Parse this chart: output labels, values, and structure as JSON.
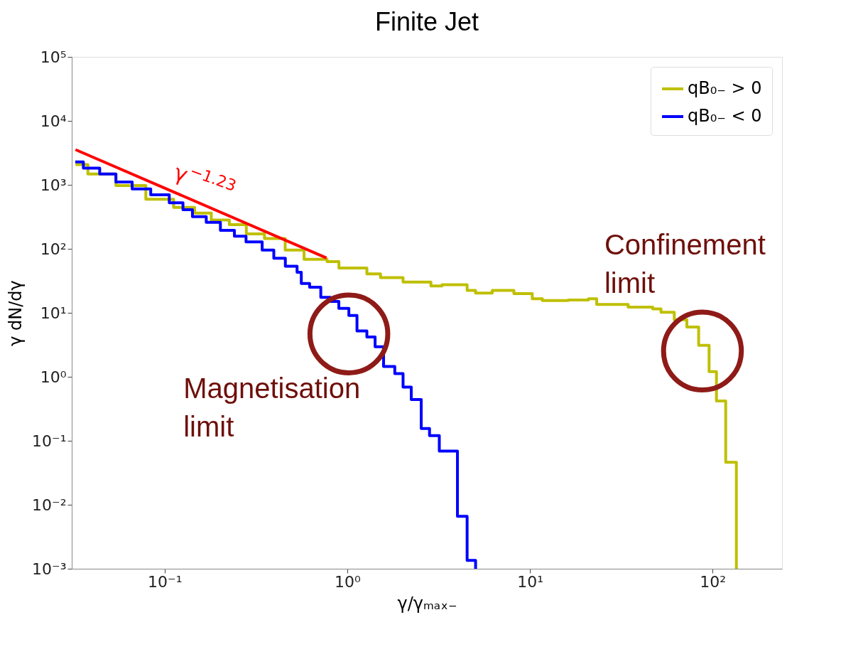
{
  "chart_data": {
    "type": "step",
    "title": "Finite Jet",
    "xlabel": "γ/γₘₐₓ₋",
    "ylabel": "γ dN/dγ",
    "log": "xy",
    "xlim": [
      0.031,
      240
    ],
    "ylim": [
      0.001,
      100000
    ],
    "xticks": [
      {
        "value": 0.1,
        "label": "10⁻¹"
      },
      {
        "value": 1,
        "label": "10⁰"
      },
      {
        "value": 10,
        "label": "10¹"
      },
      {
        "value": 100,
        "label": "10²"
      }
    ],
    "yticks": [
      {
        "value": 0.001,
        "label": "10⁻³"
      },
      {
        "value": 0.01,
        "label": "10⁻²"
      },
      {
        "value": 0.1,
        "label": "10⁻¹"
      },
      {
        "value": 1,
        "label": "10⁰"
      },
      {
        "value": 10,
        "label": "10¹"
      },
      {
        "value": 100,
        "label": "10²"
      },
      {
        "value": 1000,
        "label": "10³"
      },
      {
        "value": 10000,
        "label": "10⁴"
      },
      {
        "value": 100000,
        "label": "10⁵"
      }
    ],
    "grid": false,
    "legend": "top right",
    "series": [
      {
        "name": "qB₀₋ > 0",
        "color": "#bfbf00",
        "x": [
          0.0325,
          0.038,
          0.0541,
          0.0789,
          0.112,
          0.146,
          0.18,
          0.226,
          0.28,
          0.352,
          0.457,
          0.58,
          0.775,
          0.9,
          1.28,
          1.52,
          2.02,
          2.87,
          3.3,
          4.53,
          5.04,
          6.22,
          8.17,
          10.3,
          11.7,
          16.2,
          20.9,
          23.2,
          34.5,
          47,
          52.2,
          61.7,
          72.3,
          83.9,
          95.7,
          105,
          118,
          135
        ],
        "values": [
          2070,
          1480,
          977,
          594,
          445,
          361,
          281,
          239,
          171,
          145,
          95.7,
          68.7,
          63.1,
          50.1,
          40.7,
          35.5,
          30.2,
          26.3,
          27.5,
          22.4,
          20.4,
          22.4,
          20,
          16.6,
          15.5,
          15.8,
          16.6,
          13.5,
          12.3,
          11.5,
          10.2,
          7.8,
          6,
          3.1,
          1.2,
          0.42,
          0.046,
          0.001
        ]
      },
      {
        "name": "qB₀₋ < 0",
        "color": "#0000ff",
        "x": [
          0.0324,
          0.0359,
          0.0441,
          0.0541,
          0.0664,
          0.0839,
          0.106,
          0.126,
          0.142,
          0.169,
          0.202,
          0.241,
          0.279,
          0.342,
          0.396,
          0.458,
          0.531,
          0.56,
          0.622,
          0.716,
          0.809,
          0.899,
          1.02,
          1.13,
          1.28,
          1.42,
          1.58,
          1.82,
          2.02,
          2.24,
          2.54,
          2.82,
          3.19,
          4.01,
          4.53,
          5.04
        ],
        "values": [
          2280,
          1820,
          1480,
          1110,
          863,
          701,
          525,
          408,
          318,
          259,
          194,
          157,
          128,
          95.7,
          71.4,
          53.5,
          43.1,
          28.8,
          25.1,
          17.4,
          15.1,
          11.7,
          9.1,
          5.2,
          4.2,
          2.95,
          1.45,
          1.12,
          0.69,
          0.44,
          0.155,
          0.12,
          0.069,
          0.0066,
          0.00135,
          0.001
        ]
      },
      {
        "color": "#ff0000",
        "type": "line",
        "x": [
          0.0325,
          0.77
        ],
        "values": [
          3550,
          72
        ]
      }
    ],
    "annotations": [
      "γ$^{−1.23}$",
      {
        "text": "Magnetisation\nlimit",
        "x": 1.02,
        "y": 9.1
      },
      {
        "text": "Confinement\nlimit",
        "x": 88,
        "y": 3.1
      }
    ]
  }
}
